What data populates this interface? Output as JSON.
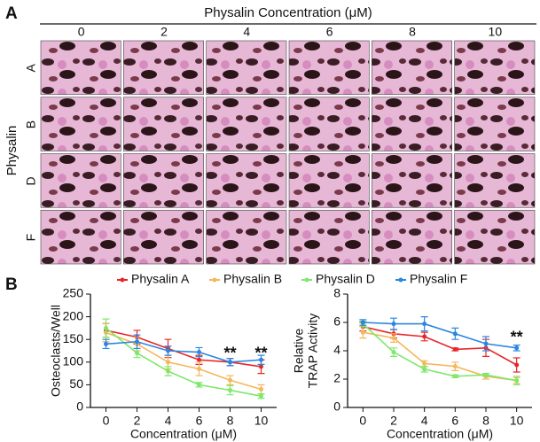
{
  "figure": {
    "panel_a": {
      "label": "A",
      "header": "Physalin Concentration (μM)",
      "columns": [
        "0",
        "2",
        "4",
        "6",
        "8",
        "10"
      ],
      "rows": [
        "A",
        "B",
        "D",
        "F"
      ],
      "row_title": "Physalin"
    },
    "panel_b": {
      "label": "B"
    }
  },
  "legend": [
    {
      "name": "Physalin A",
      "color": "#e8262a"
    },
    {
      "name": "Physalin B",
      "color": "#f5b75a"
    },
    {
      "name": "Physalin D",
      "color": "#7ee86a"
    },
    {
      "name": "Physalin F",
      "color": "#2a86e0"
    }
  ],
  "chart_data": [
    {
      "type": "line",
      "ylabel": [
        "Osteoclasts/Well"
      ],
      "xlabel": "Concentration (μM)",
      "x": [
        0,
        2,
        4,
        6,
        8,
        10
      ],
      "xlim": [
        -1,
        11
      ],
      "xticks": [
        0,
        2,
        4,
        6,
        8,
        10
      ],
      "ylim": [
        0,
        250
      ],
      "yticks": [
        0,
        50,
        100,
        150,
        200,
        250
      ],
      "series": [
        {
          "color": "#e8262a",
          "values": [
            170,
            155,
            130,
            105,
            100,
            90
          ],
          "errors": [
            15,
            15,
            20,
            10,
            8,
            15
          ]
        },
        {
          "color": "#f5b75a",
          "values": [
            165,
            140,
            100,
            85,
            60,
            40
          ],
          "errors": [
            20,
            15,
            15,
            15,
            10,
            10
          ]
        },
        {
          "color": "#7ee86a",
          "values": [
            175,
            120,
            80,
            50,
            38,
            25
          ],
          "errors": [
            20,
            10,
            10,
            5,
            10,
            5
          ]
        },
        {
          "color": "#2a86e0",
          "values": [
            140,
            145,
            125,
            122,
            100,
            105
          ],
          "errors": [
            10,
            15,
            10,
            10,
            8,
            10
          ]
        }
      ],
      "annotations": [
        {
          "x": 8,
          "y": 118,
          "text": "**"
        },
        {
          "x": 10,
          "y": 118,
          "text": "**"
        }
      ]
    },
    {
      "type": "line",
      "ylabel": [
        "Relative",
        "TRAP Activity"
      ],
      "xlabel": "Concentration (μM)",
      "x": [
        0,
        2,
        4,
        6,
        8,
        10
      ],
      "xlim": [
        -1,
        11
      ],
      "xticks": [
        0,
        2,
        4,
        6,
        8,
        10
      ],
      "ylim": [
        0,
        8
      ],
      "yticks": [
        0,
        2,
        4,
        6,
        8
      ],
      "series": [
        {
          "color": "#e8262a",
          "values": [
            5.7,
            5.2,
            5.0,
            4.1,
            4.2,
            3.0
          ],
          "errors": [
            0.3,
            0.3,
            0.3,
            0.1,
            0.6,
            0.5
          ]
        },
        {
          "color": "#f5b75a",
          "values": [
            5.3,
            4.9,
            3.1,
            2.9,
            2.2,
            1.9
          ],
          "errors": [
            0.4,
            0.3,
            0.2,
            0.3,
            0.2,
            0.2
          ]
        },
        {
          "color": "#7ee86a",
          "values": [
            5.9,
            3.9,
            2.7,
            2.2,
            2.3,
            1.9
          ],
          "errors": [
            0.2,
            0.3,
            0.2,
            0.1,
            0.1,
            0.3
          ]
        },
        {
          "color": "#2a86e0",
          "values": [
            6.0,
            5.9,
            5.9,
            5.2,
            4.5,
            4.2
          ],
          "errors": [
            0.2,
            0.4,
            0.5,
            0.4,
            0.5,
            0.2
          ]
        }
      ],
      "annotations": [
        {
          "x": 10,
          "y": 4.9,
          "text": "**"
        }
      ]
    }
  ]
}
